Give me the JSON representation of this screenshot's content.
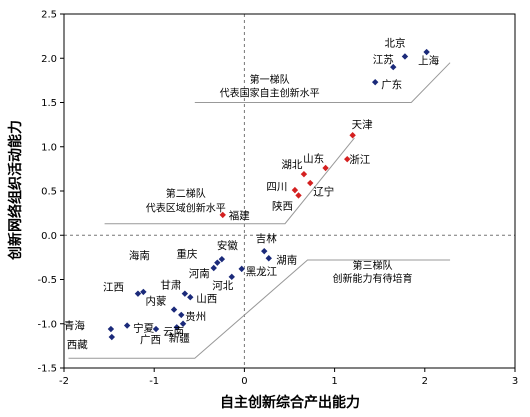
{
  "chart_data": {
    "type": "scatter",
    "xlabel": "自主创新综合产出能力",
    "ylabel": "创新网络组织活动能力",
    "xlim": [
      -2,
      3
    ],
    "ylim": [
      -1.5,
      2.5
    ],
    "xticks": [
      -2,
      -1,
      0,
      1,
      2,
      3
    ],
    "yticks": [
      -1.5,
      -1.0,
      -0.5,
      0.0,
      0.5,
      1.0,
      1.5,
      2.0,
      2.5
    ],
    "reference_lines": {
      "x": 0,
      "y": 0,
      "style": "dashed"
    },
    "colors": {
      "tier1": "#1b2a7a",
      "tier2": "#d42020",
      "tier3": "#1b2a7a",
      "line": "#999999"
    },
    "groups": [
      {
        "tier": 1,
        "lines": [
          "第一梯队",
          "代表国家自主创新水平"
        ]
      },
      {
        "tier": 2,
        "lines": [
          "第二梯队",
          "代表区域创新水平"
        ]
      },
      {
        "tier": 3,
        "lines": [
          "第三梯队",
          "创新能力有待培育"
        ]
      }
    ],
    "points": [
      {
        "name": "北京",
        "x": 1.78,
        "y": 2.02,
        "tier": 1
      },
      {
        "name": "上海",
        "x": 2.02,
        "y": 2.07,
        "tier": 1
      },
      {
        "name": "江苏",
        "x": 1.65,
        "y": 1.9,
        "tier": 1
      },
      {
        "name": "广东",
        "x": 1.45,
        "y": 1.73,
        "tier": 1
      },
      {
        "name": "天津",
        "x": 1.2,
        "y": 1.13,
        "tier": 2
      },
      {
        "name": "浙江",
        "x": 1.14,
        "y": 0.86,
        "tier": 2
      },
      {
        "name": "山东",
        "x": 0.9,
        "y": 0.76,
        "tier": 2
      },
      {
        "name": "湖北",
        "x": 0.66,
        "y": 0.69,
        "tier": 2
      },
      {
        "name": "四川",
        "x": 0.56,
        "y": 0.51,
        "tier": 2
      },
      {
        "name": "辽宁",
        "x": 0.73,
        "y": 0.59,
        "tier": 2
      },
      {
        "name": "陕西",
        "x": 0.6,
        "y": 0.45,
        "tier": 2
      },
      {
        "name": "福建",
        "x": -0.24,
        "y": 0.23,
        "tier": 2
      },
      {
        "name": "吉林",
        "x": 0.22,
        "y": -0.18,
        "tier": 3
      },
      {
        "name": "湖南",
        "x": 0.27,
        "y": -0.26,
        "tier": 3
      },
      {
        "name": "安徽",
        "x": -0.25,
        "y": -0.27,
        "tier": 3
      },
      {
        "name": "重庆",
        "x": -0.3,
        "y": -0.31,
        "tier": 3
      },
      {
        "name": "河南",
        "x": -0.34,
        "y": -0.37,
        "tier": 3
      },
      {
        "name": "黑龙江",
        "x": -0.03,
        "y": -0.38,
        "tier": 3
      },
      {
        "name": "河北",
        "x": -0.14,
        "y": -0.47,
        "tier": 3
      },
      {
        "name": "海南",
        "x": -1.12,
        "y": -0.64,
        "tier": 3
      },
      {
        "name": "江西",
        "x": -1.18,
        "y": -0.66,
        "tier": 3
      },
      {
        "name": "甘肃",
        "x": -0.66,
        "y": -0.66,
        "tier": 3
      },
      {
        "name": "山西",
        "x": -0.6,
        "y": -0.7,
        "tier": 3
      },
      {
        "name": "内蒙",
        "x": -0.78,
        "y": -0.84,
        "tier": 3
      },
      {
        "name": "贵州",
        "x": -0.7,
        "y": -0.9,
        "tier": 3
      },
      {
        "name": "宁夏",
        "x": -1.3,
        "y": -1.02,
        "tier": 3
      },
      {
        "name": "青海",
        "x": -1.48,
        "y": -1.06,
        "tier": 3
      },
      {
        "name": "广西",
        "x": -0.98,
        "y": -1.06,
        "tier": 3
      },
      {
        "name": "新疆",
        "x": -0.75,
        "y": -1.04,
        "tier": 3
      },
      {
        "name": "云南",
        "x": -0.68,
        "y": -1.0,
        "tier": 3
      },
      {
        "name": "西藏",
        "x": -1.47,
        "y": -1.15,
        "tier": 3
      }
    ]
  }
}
